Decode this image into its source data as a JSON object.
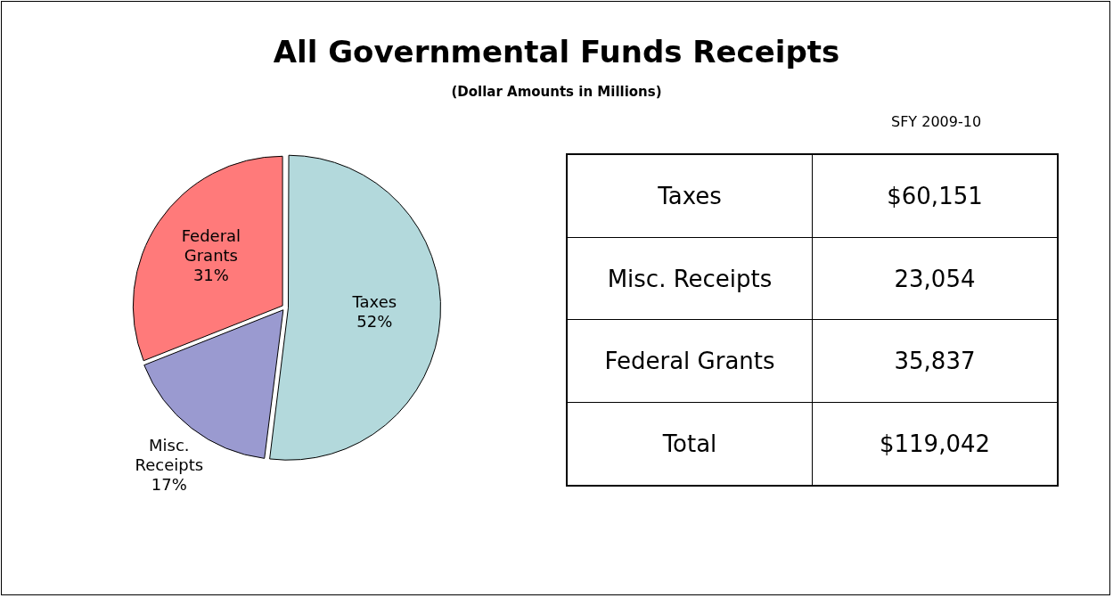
{
  "chart_data": {
    "type": "pie",
    "title": "All Governmental Funds Receipts",
    "subtitle": "(Dollar Amounts in Millions)",
    "categories": [
      "Taxes",
      "Misc. Receipts",
      "Federal Grants"
    ],
    "values": [
      52,
      17,
      31
    ],
    "colors": [
      "#b3d9dc",
      "#9a9ad0",
      "#ff7a7a"
    ],
    "annotations": [
      "SFY 2009-10",
      "$60,151",
      "23,054",
      "35,837",
      "Total",
      "$119,042",
      {
        "text": "52%",
        "x": "Taxes"
      },
      {
        "text": "17%",
        "x": "Misc. Receipts"
      },
      {
        "text": "31%",
        "x": "Federal Grants"
      }
    ],
    "legend": false
  }
}
